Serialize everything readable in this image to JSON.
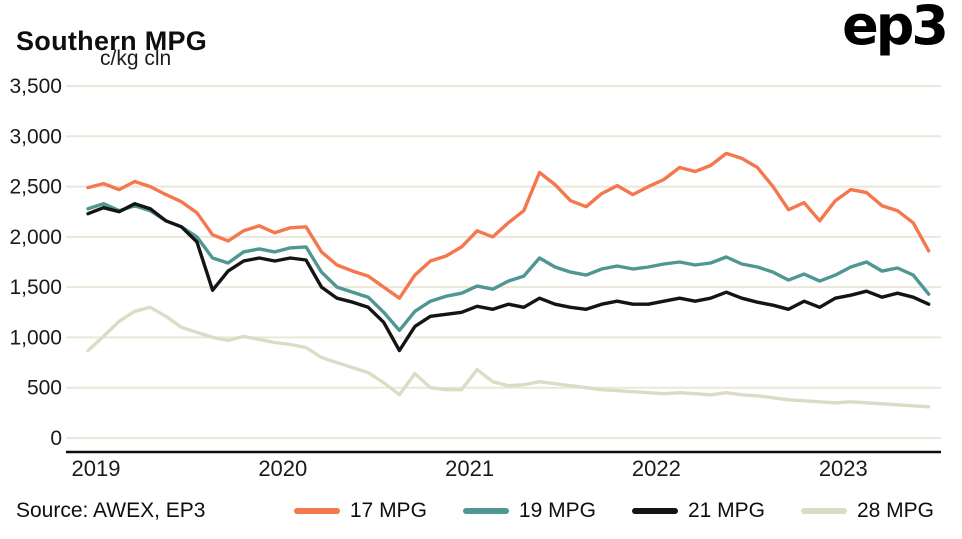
{
  "header": {
    "title": "Southern MPG",
    "logo": "ep3"
  },
  "footer": {
    "source": "Source: AWEX, EP3"
  },
  "chart_data": {
    "type": "line",
    "title": "Southern MPG",
    "xlabel": "",
    "ylabel": "c/kg cln",
    "ylim": [
      0,
      3500
    ],
    "yticks": [
      0,
      500,
      1000,
      1500,
      2000,
      2500,
      3000,
      3500
    ],
    "xlim": [
      2019.0,
      2023.55
    ],
    "xticks": [
      2019,
      2020,
      2021,
      2022,
      2023
    ],
    "grid": "horizontal",
    "grid_color": "#ece7da",
    "axis_color": "#0d0d0d",
    "legend_position": "bottom",
    "x": [
      2019.0,
      2019.083,
      2019.167,
      2019.25,
      2019.333,
      2019.417,
      2019.5,
      2019.583,
      2019.667,
      2019.75,
      2019.833,
      2019.917,
      2020.0,
      2020.083,
      2020.167,
      2020.25,
      2020.333,
      2020.417,
      2020.5,
      2020.583,
      2020.667,
      2020.75,
      2020.833,
      2020.917,
      2021.0,
      2021.083,
      2021.167,
      2021.25,
      2021.333,
      2021.417,
      2021.5,
      2021.583,
      2021.667,
      2021.75,
      2021.833,
      2021.917,
      2022.0,
      2022.083,
      2022.167,
      2022.25,
      2022.333,
      2022.417,
      2022.5,
      2022.583,
      2022.667,
      2022.75,
      2022.833,
      2022.917,
      2023.0,
      2023.083,
      2023.167,
      2023.25,
      2023.333,
      2023.417,
      2023.5
    ],
    "series": [
      {
        "name": "17 MPG",
        "color": "#f4774e",
        "values": [
          2490,
          2530,
          2470,
          2550,
          2500,
          2420,
          2350,
          2240,
          2020,
          1960,
          2060,
          2110,
          2040,
          2090,
          2100,
          1850,
          1720,
          1660,
          1610,
          1500,
          1390,
          1620,
          1760,
          1810,
          1900,
          2060,
          2000,
          2140,
          2260,
          2640,
          2520,
          2360,
          2300,
          2430,
          2510,
          2420,
          2500,
          2570,
          2690,
          2650,
          2710,
          2830,
          2780,
          2690,
          2500,
          2270,
          2340,
          2160,
          2360,
          2470,
          2440,
          2310,
          2260,
          2140,
          1860
        ]
      },
      {
        "name": "19 MPG",
        "color": "#4f9793",
        "values": [
          2280,
          2330,
          2260,
          2310,
          2260,
          2160,
          2100,
          2000,
          1790,
          1740,
          1850,
          1880,
          1850,
          1890,
          1900,
          1650,
          1500,
          1450,
          1400,
          1250,
          1070,
          1260,
          1360,
          1410,
          1440,
          1510,
          1480,
          1560,
          1610,
          1790,
          1700,
          1650,
          1620,
          1680,
          1710,
          1680,
          1700,
          1730,
          1750,
          1720,
          1740,
          1800,
          1730,
          1700,
          1650,
          1570,
          1630,
          1560,
          1620,
          1700,
          1750,
          1660,
          1690,
          1620,
          1430
        ]
      },
      {
        "name": "21 MPG",
        "color": "#141414",
        "values": [
          2230,
          2290,
          2250,
          2330,
          2280,
          2160,
          2100,
          1950,
          1470,
          1660,
          1760,
          1790,
          1760,
          1790,
          1770,
          1500,
          1390,
          1350,
          1300,
          1150,
          870,
          1110,
          1210,
          1230,
          1250,
          1310,
          1280,
          1330,
          1300,
          1390,
          1330,
          1300,
          1280,
          1330,
          1360,
          1330,
          1330,
          1360,
          1390,
          1360,
          1390,
          1450,
          1390,
          1350,
          1320,
          1280,
          1360,
          1300,
          1390,
          1420,
          1460,
          1400,
          1440,
          1400,
          1330
        ]
      },
      {
        "name": "28 MPG",
        "color": "#dcdcc6",
        "values": [
          870,
          1010,
          1160,
          1260,
          1300,
          1210,
          1100,
          1050,
          1000,
          970,
          1010,
          980,
          950,
          930,
          900,
          800,
          750,
          700,
          650,
          550,
          430,
          640,
          500,
          480,
          480,
          680,
          560,
          520,
          530,
          560,
          540,
          520,
          500,
          480,
          470,
          460,
          450,
          440,
          450,
          440,
          430,
          450,
          430,
          420,
          400,
          380,
          370,
          360,
          350,
          360,
          350,
          340,
          330,
          320,
          310
        ]
      }
    ]
  }
}
